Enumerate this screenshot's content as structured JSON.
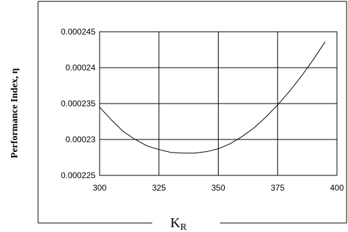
{
  "chart_data": {
    "type": "line",
    "title": "",
    "ylabel": "Performance Index, η",
    "xlabel_main": "K",
    "xlabel_sub": "R",
    "xlim": [
      300,
      400
    ],
    "ylim": [
      0.000225,
      0.000245
    ],
    "x_ticks": [
      300,
      325,
      350,
      375,
      400
    ],
    "y_ticks": [
      0.000225,
      0.00023,
      0.000235,
      0.00024,
      0.000245
    ],
    "x_tick_labels": [
      "300",
      "325",
      "350",
      "375",
      "400"
    ],
    "y_tick_labels": [
      "0.000225",
      "0.00023",
      "0.000235",
      "0.00024",
      "0.000245"
    ],
    "grid": true,
    "legend": "none",
    "series": [
      {
        "x": [
          300,
          305,
          310,
          315,
          320,
          325,
          330,
          335,
          340,
          345,
          350,
          355,
          360,
          365,
          370,
          375,
          380,
          385,
          390,
          395
        ],
        "values": [
          0.0002345,
          0.0002327,
          0.0002311,
          0.00023,
          0.0002291,
          0.0002286,
          0.0002282,
          0.0002281,
          0.0002281,
          0.0002283,
          0.0002287,
          0.0002294,
          0.0002304,
          0.0002316,
          0.0002331,
          0.0002348,
          0.0002367,
          0.0002388,
          0.0002411,
          0.0002436
        ]
      }
    ]
  }
}
